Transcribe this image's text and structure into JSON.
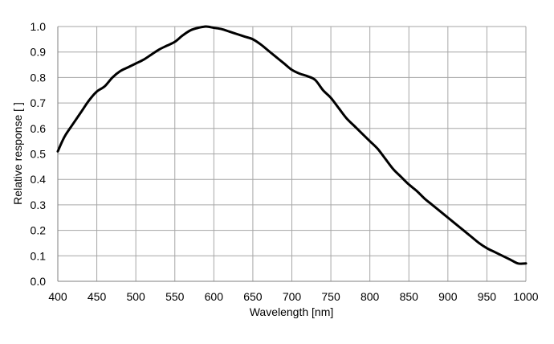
{
  "chart_data": {
    "type": "line",
    "xlabel": "Wavelength [nm]",
    "ylabel": "Relative response [ ]",
    "xlim": [
      400,
      1000
    ],
    "ylim": [
      0,
      1.0
    ],
    "xticks": [
      400,
      450,
      500,
      550,
      600,
      650,
      700,
      750,
      800,
      850,
      900,
      950,
      1000
    ],
    "yticks": [
      0.0,
      0.1,
      0.2,
      0.3,
      0.4,
      0.5,
      0.6,
      0.7,
      0.8,
      0.9,
      1.0
    ],
    "grid": true,
    "colors": {
      "line": "#000000",
      "grid": "#a6a6a6"
    },
    "series": [
      {
        "x": [
          400,
          405,
          410,
          420,
          430,
          440,
          450,
          460,
          470,
          480,
          490,
          500,
          510,
          520,
          530,
          540,
          550,
          560,
          570,
          580,
          590,
          600,
          610,
          620,
          630,
          640,
          650,
          660,
          670,
          680,
          690,
          700,
          710,
          720,
          730,
          740,
          750,
          760,
          770,
          780,
          790,
          800,
          810,
          820,
          830,
          840,
          850,
          860,
          870,
          880,
          890,
          900,
          910,
          920,
          930,
          940,
          950,
          960,
          970,
          980,
          990,
          1000
        ],
        "values": [
          0.51,
          0.545,
          0.575,
          0.62,
          0.665,
          0.71,
          0.745,
          0.765,
          0.8,
          0.825,
          0.84,
          0.855,
          0.87,
          0.89,
          0.91,
          0.925,
          0.94,
          0.965,
          0.985,
          0.995,
          1.0,
          0.995,
          0.99,
          0.98,
          0.97,
          0.96,
          0.95,
          0.93,
          0.905,
          0.88,
          0.855,
          0.83,
          0.815,
          0.805,
          0.79,
          0.75,
          0.72,
          0.68,
          0.64,
          0.61,
          0.58,
          0.55,
          0.52,
          0.48,
          0.44,
          0.41,
          0.38,
          0.355,
          0.325,
          0.3,
          0.275,
          0.25,
          0.225,
          0.2,
          0.175,
          0.15,
          0.13,
          0.115,
          0.1,
          0.085,
          0.07,
          0.07
        ]
      }
    ]
  }
}
